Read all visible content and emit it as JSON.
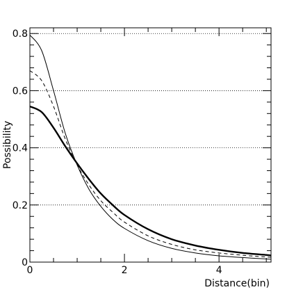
{
  "chart_data": {
    "type": "line",
    "title": "",
    "xlabel": "Distance(bin)",
    "ylabel": "Possibility",
    "xlim": [
      0,
      5.1
    ],
    "ylim": [
      0,
      0.82
    ],
    "x_ticks": [
      0,
      2,
      4
    ],
    "y_ticks": [
      0,
      0.2,
      0.4,
      0.6,
      0.8
    ],
    "grid": "horizontal dotted",
    "legend": "none",
    "series": [
      {
        "style": "thick solid",
        "x": [
          0,
          0.25,
          0.5,
          0.75,
          1.0,
          1.25,
          1.5,
          1.75,
          2.0,
          2.5,
          3.0,
          3.5,
          4.0,
          4.5,
          5.0,
          5.1
        ],
        "y": [
          0.545,
          0.525,
          0.47,
          0.405,
          0.345,
          0.29,
          0.24,
          0.2,
          0.165,
          0.115,
          0.08,
          0.058,
          0.043,
          0.032,
          0.025,
          0.023
        ]
      },
      {
        "style": "dashed",
        "x": [
          0,
          0.25,
          0.5,
          0.75,
          1.0,
          1.25,
          1.5,
          1.75,
          2.0,
          2.5,
          3.0,
          3.5,
          4.0,
          4.5,
          5.0,
          5.1
        ],
        "y": [
          0.67,
          0.635,
          0.545,
          0.43,
          0.34,
          0.27,
          0.215,
          0.175,
          0.14,
          0.092,
          0.062,
          0.043,
          0.032,
          0.024,
          0.018,
          0.017
        ]
      },
      {
        "style": "thin solid",
        "x": [
          0,
          0.25,
          0.5,
          0.75,
          1.0,
          1.25,
          1.5,
          1.75,
          2.0,
          2.5,
          3.0,
          3.5,
          4.0,
          4.5,
          5.0,
          5.1
        ],
        "y": [
          0.795,
          0.74,
          0.6,
          0.45,
          0.34,
          0.255,
          0.195,
          0.15,
          0.118,
          0.075,
          0.048,
          0.032,
          0.022,
          0.016,
          0.011,
          0.01
        ]
      }
    ]
  }
}
